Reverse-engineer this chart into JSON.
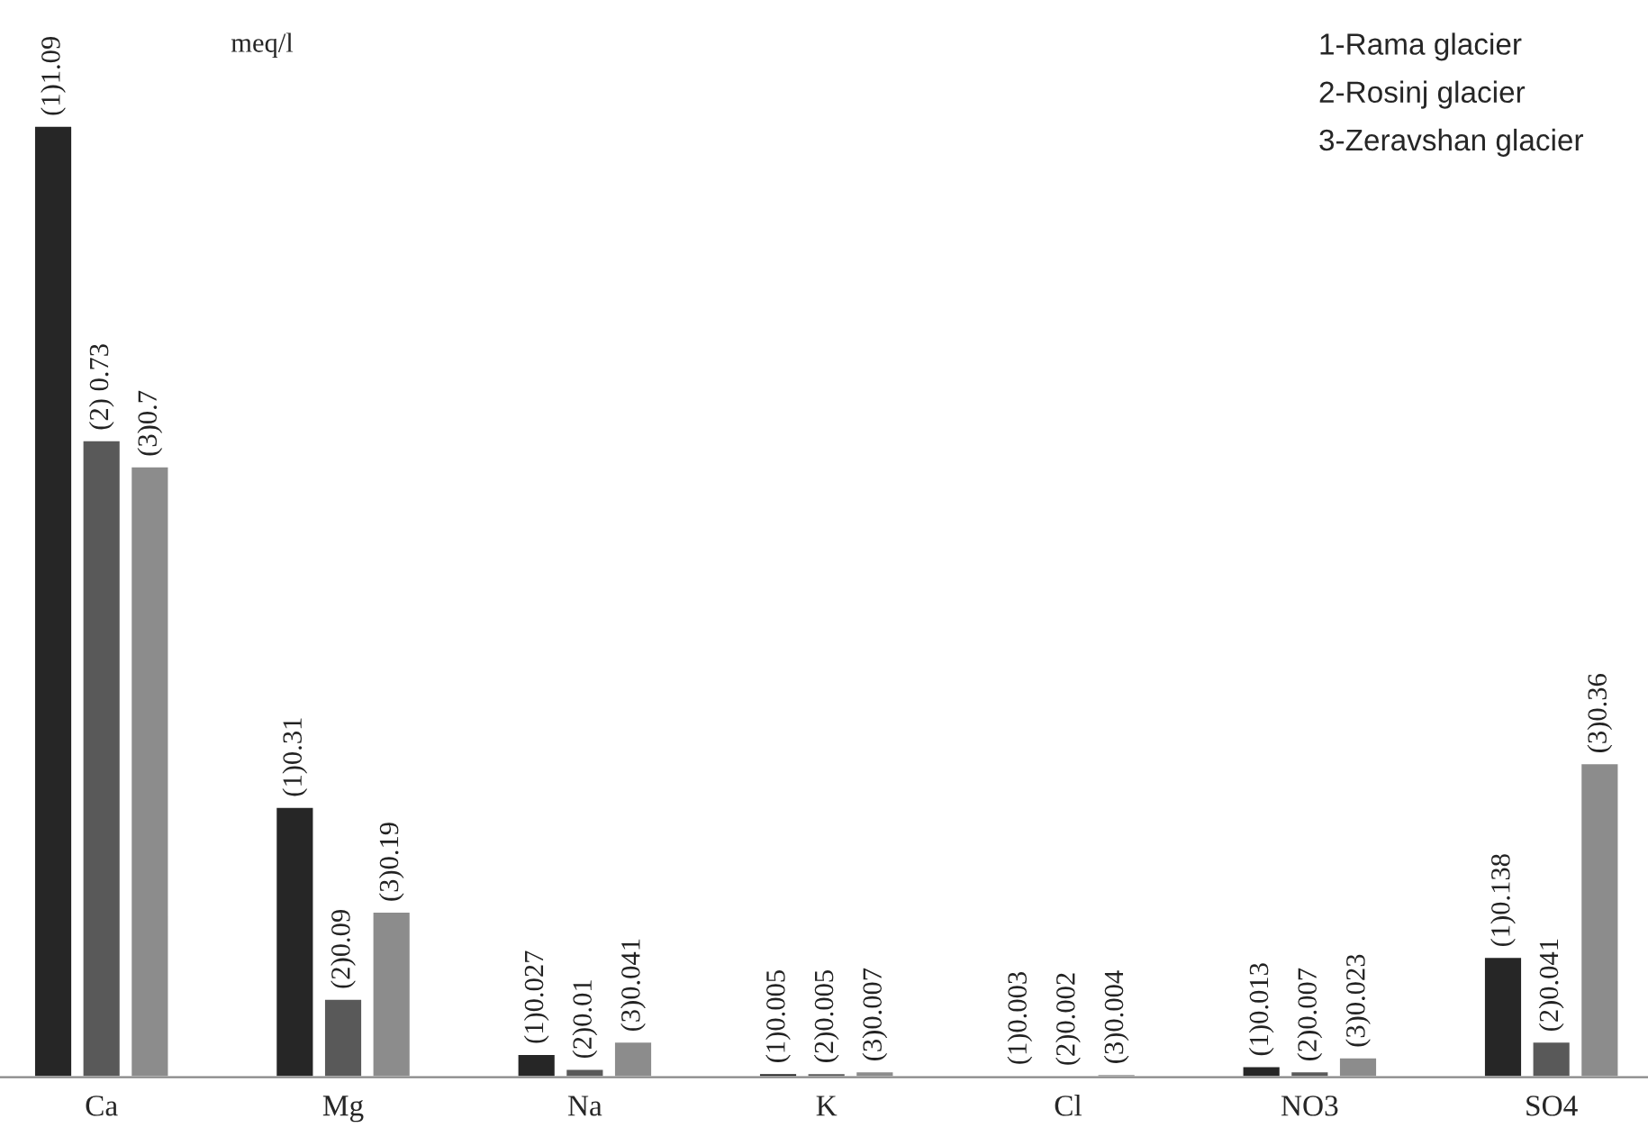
{
  "chart_data": {
    "type": "bar",
    "categories": [
      "Ca",
      "Mg",
      "Na",
      "K",
      "Cl",
      "NO3",
      "SO4"
    ],
    "series": [
      {
        "color": "#262626",
        "values": [
          1.09,
          0.31,
          0.027,
          0.005,
          0.003,
          0.013,
          0.138
        ],
        "value_labels": [
          "(1)1.09",
          "(1)0.31",
          "(1)0.027",
          "(1)0.005",
          "(1)0.003",
          "(1)0.013",
          "(1)0.138"
        ]
      },
      {
        "color": "#595959",
        "values": [
          0.73,
          0.09,
          0.01,
          0.005,
          0.002,
          0.007,
          0.041
        ],
        "value_labels": [
          "(2) 0.73",
          "(2)0.09",
          "(2)0.01",
          "(2)0.005",
          "(2)0.002",
          "(2)0.007",
          "(2)0.041"
        ]
      },
      {
        "color": "#8c8c8c",
        "values": [
          0.7,
          0.19,
          0.041,
          0.007,
          0.004,
          0.023,
          0.36
        ],
        "value_labels": [
          "(3)0.7",
          "(3)0.19",
          "(3)0.041",
          "(3)0.007",
          "(3)0.004",
          "(3)0.023",
          "(3)0.36"
        ]
      }
    ],
    "annotations": [
      "meq/l",
      "1-Rama glacier",
      "2-Rosinj glacier",
      "3-Zeravshan glacier"
    ],
    "grid": false,
    "legend": false
  }
}
